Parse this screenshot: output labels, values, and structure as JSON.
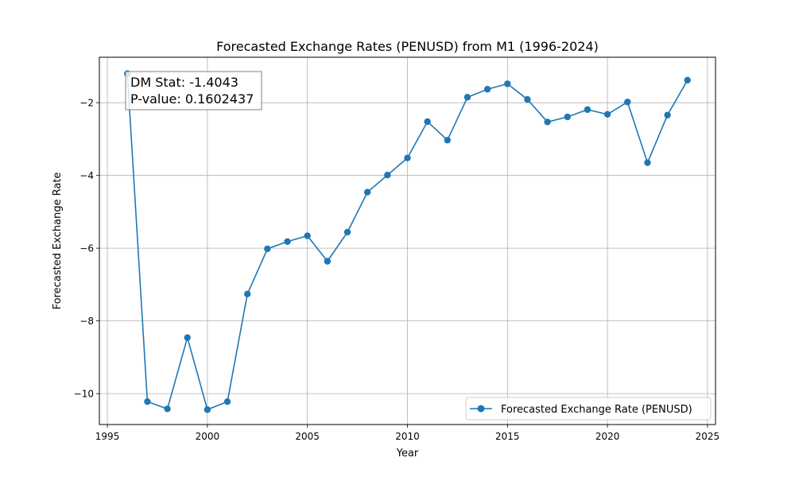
{
  "chart_data": {
    "type": "line",
    "title": "Forecasted Exchange Rates (PENUSD) from M1 (1996-2024)",
    "xlabel": "Year",
    "ylabel": "Forecasted Exchange Rate",
    "xlim": [
      1994.6,
      2025.4
    ],
    "ylim": [
      -10.85,
      -0.75
    ],
    "xticks": [
      1995,
      2000,
      2005,
      2010,
      2015,
      2020,
      2025
    ],
    "yticks": [
      -10,
      -8,
      -6,
      -4,
      -2
    ],
    "grid": true,
    "legend_position": "lower-right",
    "series": [
      {
        "name": "Forecasted Exchange Rate (PENUSD)",
        "color": "#1f77b4",
        "marker": "circle",
        "x": [
          1996,
          1997,
          1998,
          1999,
          2000,
          2001,
          2002,
          2003,
          2004,
          2005,
          2006,
          2007,
          2008,
          2009,
          2010,
          2011,
          2012,
          2013,
          2014,
          2015,
          2016,
          2017,
          2018,
          2019,
          2020,
          2021,
          2022,
          2023,
          2024
        ],
        "y": [
          -1.2,
          -10.22,
          -10.42,
          -8.46,
          -10.44,
          -10.22,
          -7.26,
          -6.02,
          -5.82,
          -5.66,
          -6.36,
          -5.56,
          -4.46,
          -3.99,
          -3.52,
          -2.52,
          -3.03,
          -1.85,
          -1.63,
          -1.48,
          -1.91,
          -2.53,
          -2.39,
          -2.19,
          -2.32,
          -1.98,
          -3.65,
          -2.34,
          -1.38
        ]
      }
    ],
    "annotation": {
      "line1": "DM Stat: -1.4043",
      "line2": "P-value: 0.1602437"
    }
  }
}
